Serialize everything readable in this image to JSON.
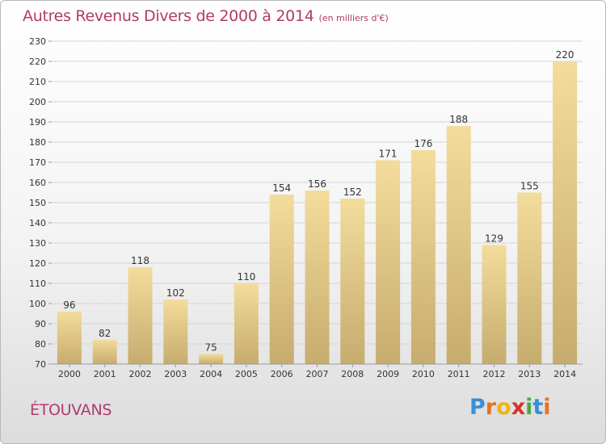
{
  "place": "ÉTOUVANS",
  "logo_text": "Proxiti",
  "colors": {
    "title": "#b03a6c",
    "bar_top": "#f3dc9c",
    "bar_bottom": "#c6ac6e",
    "grid": "#d4d4d4"
  },
  "chart_data": {
    "type": "bar",
    "title": "Autres Revenus Divers de 2000 à 2014",
    "subtitle": "(en milliers d'€)",
    "xlabel": "",
    "ylabel": "",
    "categories": [
      "2000",
      "2001",
      "2002",
      "2003",
      "2004",
      "2005",
      "2006",
      "2007",
      "2008",
      "2009",
      "2010",
      "2011",
      "2012",
      "2013",
      "2014"
    ],
    "values": [
      96,
      82,
      118,
      102,
      75,
      110,
      154,
      156,
      152,
      171,
      176,
      188,
      129,
      155,
      220
    ],
    "ylim": [
      70,
      230
    ],
    "yticks": [
      70,
      80,
      90,
      100,
      110,
      120,
      130,
      140,
      150,
      160,
      170,
      180,
      190,
      200,
      210,
      220,
      230
    ],
    "grid": true,
    "legend": "none"
  }
}
